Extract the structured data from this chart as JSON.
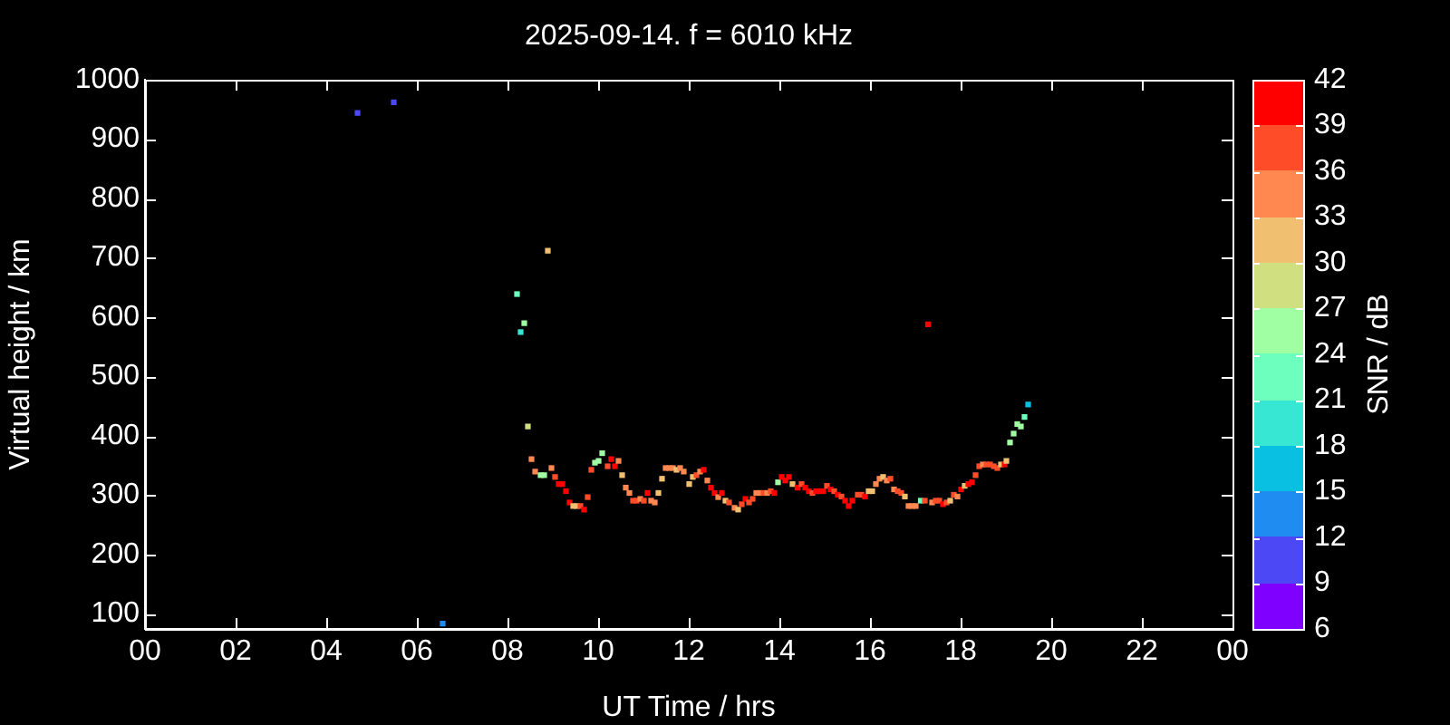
{
  "chart_data": {
    "type": "scatter",
    "title": "2025-09-14. f = 6010 kHz",
    "xlabel": "UT Time / hrs",
    "ylabel": "Virtual height / km",
    "clabel": "SNR / dB",
    "xlim": [
      0,
      24
    ],
    "xticks": [
      {
        "value": 0,
        "label": "00"
      },
      {
        "value": 2,
        "label": "02"
      },
      {
        "value": 4,
        "label": "04"
      },
      {
        "value": 6,
        "label": "06"
      },
      {
        "value": 8,
        "label": "08"
      },
      {
        "value": 10,
        "label": "10"
      },
      {
        "value": 12,
        "label": "12"
      },
      {
        "value": 14,
        "label": "14"
      },
      {
        "value": 16,
        "label": "16"
      },
      {
        "value": 18,
        "label": "18"
      },
      {
        "value": 20,
        "label": "20"
      },
      {
        "value": 22,
        "label": "22"
      },
      {
        "value": 24,
        "label": "00"
      }
    ],
    "ylim": [
      75,
      1000
    ],
    "yticks": [
      100,
      200,
      300,
      400,
      500,
      600,
      700,
      800,
      900,
      1000
    ],
    "clim": [
      6,
      42
    ],
    "cticks": [
      6,
      9,
      12,
      15,
      18,
      21,
      24,
      27,
      30,
      33,
      36,
      39,
      42
    ],
    "grid": false,
    "legend": false,
    "marker": "square",
    "series": [
      {
        "x": [
          5.49,
          4.69,
          8.89,
          8.21,
          8.37,
          8.29,
          8.45,
          8.53,
          8.61,
          8.73,
          8.81,
          8.97,
          9.05,
          9.13,
          9.21,
          9.29,
          9.37,
          9.45,
          9.53,
          6.57,
          9.61,
          9.69,
          9.77,
          9.85,
          9.93,
          10.01,
          10.09,
          10.29,
          10.21,
          10.37,
          10.45,
          10.53,
          10.61,
          10.69,
          10.77,
          10.85,
          10.93,
          11.01,
          11.09,
          11.17,
          11.25,
          11.33,
          11.41,
          11.49,
          11.57,
          11.65,
          11.73,
          11.81,
          11.89,
          12.01,
          12.09,
          12.17,
          12.25,
          12.33,
          12.41,
          12.49,
          12.57,
          12.65,
          12.73,
          12.81,
          12.89,
          13.01,
          13.09,
          13.17,
          13.25,
          13.33,
          13.41,
          13.49,
          13.57,
          13.65,
          13.73,
          13.81,
          13.89,
          13.97,
          14.05,
          14.13,
          14.21,
          14.29,
          14.4,
          14.49,
          14.57,
          14.65,
          14.73,
          14.81,
          14.89,
          14.97,
          15.05,
          15.13,
          15.21,
          15.29,
          15.37,
          15.45,
          15.53,
          15.61,
          15.73,
          15.81,
          15.89,
          15.97,
          16.05,
          16.13,
          16.21,
          16.29,
          16.37,
          16.45,
          16.53,
          16.61,
          16.69,
          16.77,
          16.85,
          16.93,
          17.01,
          17.12,
          17.21,
          17.37,
          17.45,
          17.53,
          17.61,
          17.69,
          17.77,
          17.85,
          17.93,
          18.01,
          18.09,
          18.17,
          18.25,
          18.33,
          18.41,
          18.49,
          18.57,
          18.65,
          18.73,
          18.81,
          18.89,
          18.97,
          19.01,
          19.09,
          19.17,
          19.25,
          19.33,
          19.41,
          19.49,
          17.28
        ],
        "values": [
          962,
          944,
          712,
          639,
          590,
          575,
          416,
          361,
          340,
          334,
          334,
          346,
          331,
          319,
          319,
          307,
          288,
          282,
          282,
          84,
          282,
          276,
          297,
          343,
          355,
          358,
          371,
          361,
          349,
          349,
          358,
          334,
          313,
          304,
          291,
          291,
          294,
          291,
          304,
          291,
          288,
          304,
          328,
          346,
          346,
          346,
          343,
          346,
          340,
          319,
          331,
          334,
          340,
          343,
          325,
          313,
          304,
          297,
          304,
          291,
          288,
          279,
          276,
          285,
          294,
          288,
          294,
          304,
          304,
          304,
          304,
          307,
          304,
          322,
          331,
          325,
          331,
          319,
          313,
          319,
          313,
          307,
          304,
          307,
          307,
          307,
          316,
          310,
          307,
          301,
          298,
          291,
          282,
          291,
          301,
          301,
          298,
          307,
          307,
          319,
          328,
          331,
          325,
          328,
          310,
          307,
          304,
          298,
          282,
          282,
          282,
          291,
          291,
          288,
          291,
          291,
          285,
          288,
          291,
          301,
          298,
          310,
          316,
          319,
          322,
          334,
          349,
          352,
          352,
          352,
          349,
          346,
          352,
          352,
          358,
          389,
          404,
          420,
          416,
          432,
          453,
          588
        ],
        "cvalues": [
          10,
          10,
          31,
          22,
          25,
          19,
          28,
          34,
          34,
          25,
          25,
          34,
          37,
          40,
          40,
          40,
          40,
          33,
          33,
          13,
          37,
          40,
          37,
          37,
          25,
          25,
          27,
          40,
          37,
          40,
          35,
          31,
          35,
          35,
          38,
          38,
          35,
          37,
          40,
          35,
          35,
          31,
          31,
          35,
          35,
          35,
          31,
          35,
          35,
          31,
          31,
          37,
          35,
          40,
          35,
          40,
          40,
          35,
          40,
          31,
          37,
          35,
          33,
          37,
          40,
          37,
          37,
          35,
          35,
          37,
          35,
          37,
          40,
          27,
          40,
          40,
          40,
          31,
          40,
          37,
          40,
          40,
          38,
          40,
          40,
          40,
          37,
          40,
          37,
          40,
          37,
          40,
          40,
          40,
          37,
          37,
          40,
          31,
          31,
          35,
          35,
          31,
          35,
          37,
          35,
          37,
          37,
          31,
          35,
          35,
          35,
          24,
          37,
          35,
          37,
          37,
          40,
          37,
          31,
          37,
          35,
          40,
          31,
          40,
          40,
          37,
          37,
          35,
          37,
          37,
          37,
          37,
          31,
          40,
          31,
          26,
          25,
          25,
          25,
          22,
          16,
          40
        ]
      }
    ]
  }
}
